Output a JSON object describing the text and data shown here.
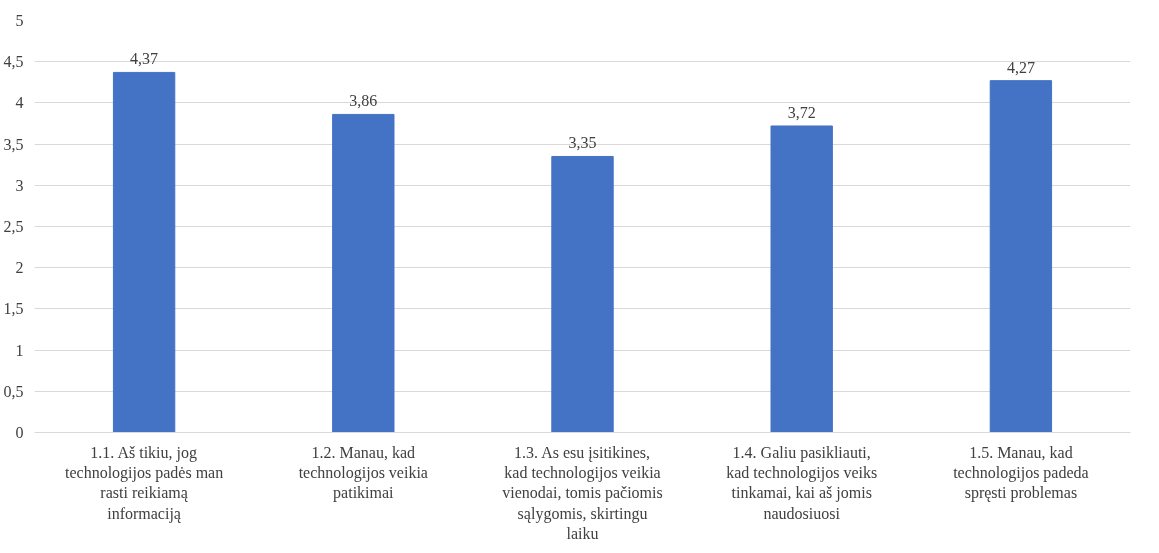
{
  "chart_data": {
    "type": "bar",
    "categories": [
      "1.1. Aš tikiu, jog technologijos padės man rasti reikiamą informaciją",
      "1.2. Manau, kad technologijos veikia patikimai",
      "1.3. As esu įsitikines, kad technologijos veikia vienodai, tomis pačiomis sąlygomis, skirtingu laiku",
      "1.4. Galiu pasikliauti, kad technologijos veiks tinkamai, kai aš jomis naudosiuosi",
      "1.5. Manau, kad technologijos padeda spręsti problemas"
    ],
    "values": [
      4.37,
      3.86,
      3.35,
      3.72,
      4.27
    ],
    "value_labels": [
      "4,37",
      "3,86",
      "3,35",
      "3,72",
      "4,27"
    ],
    "color": "#4472c4",
    "ylim": [
      0,
      5
    ],
    "yticks": [
      0,
      {
        "value": 0.5,
        "label": "0,5"
      },
      1,
      {
        "value": 1.5,
        "label": "1,5"
      },
      2,
      {
        "value": 2.5,
        "label": "2,5"
      },
      3,
      {
        "value": 3.5,
        "label": "3,5"
      },
      4,
      {
        "value": 4.5,
        "label": "4,5"
      },
      5
    ],
    "grid": "y"
  }
}
